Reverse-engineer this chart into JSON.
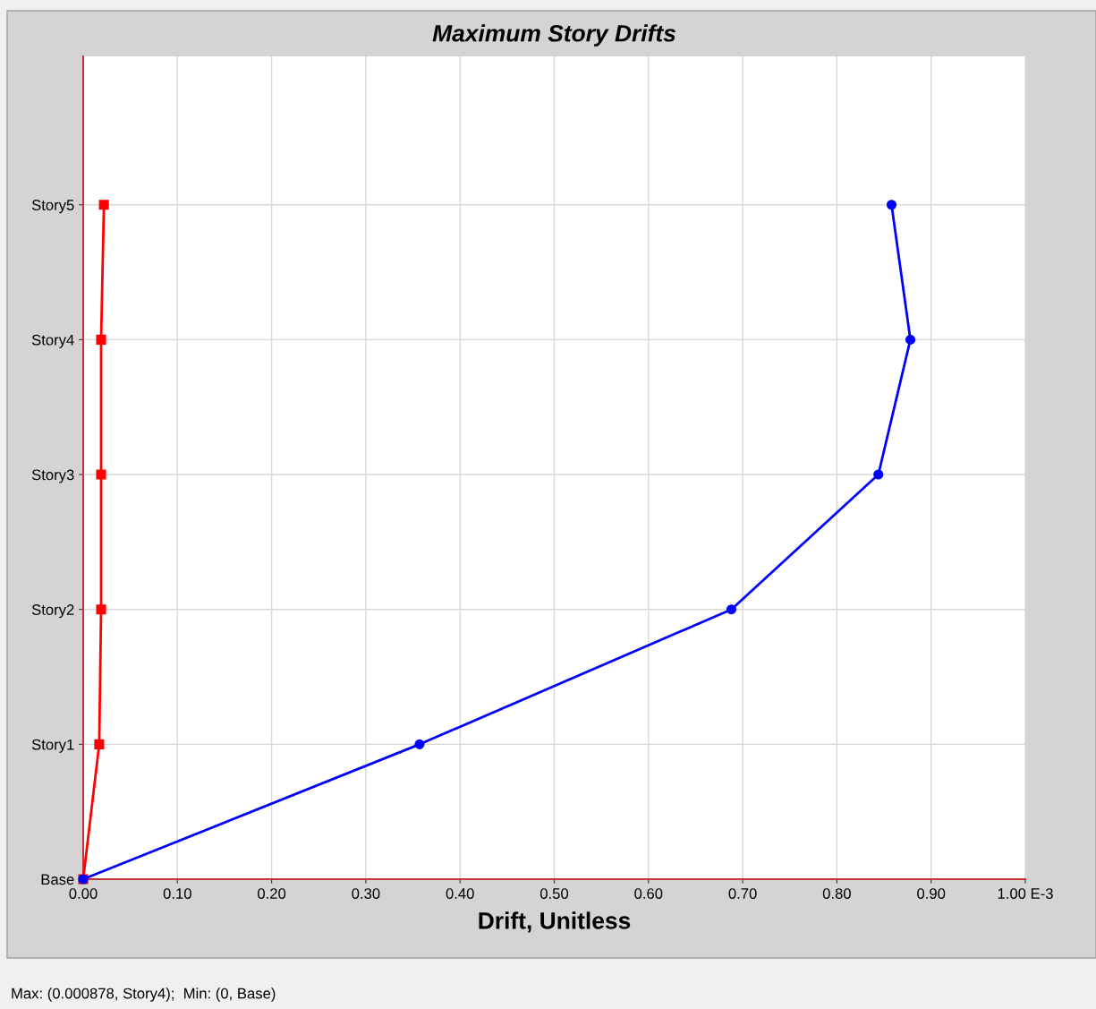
{
  "chart_data": {
    "type": "line",
    "orientation": "horizontal",
    "title": "Maximum Story Drifts",
    "xlabel": "Drift, Unitless",
    "annotations": [
      "Max: (0.000878, Story4);  Min: (0, Base)"
    ],
    "categories": [
      "Story5",
      "Story4",
      "Story3",
      "Story2",
      "Story1",
      "Base"
    ],
    "xlim": [
      0,
      1.0
    ],
    "xticks": [
      {
        "value": 0,
        "label": "0.00"
      },
      {
        "value": 0.1,
        "label": "0.10"
      },
      {
        "value": 0.2,
        "label": "0.20"
      },
      {
        "value": 0.3,
        "label": "0.30"
      },
      {
        "value": 0.4,
        "label": "0.40"
      },
      {
        "value": 0.5,
        "label": "0.50"
      },
      {
        "value": 0.6,
        "label": "0.60"
      },
      {
        "value": 0.7,
        "label": "0.70"
      },
      {
        "value": 0.8,
        "label": "0.80"
      },
      {
        "value": 0.9,
        "label": "0.90"
      },
      {
        "value": 1.0,
        "label": "1.00 E-3"
      }
    ],
    "grid": true,
    "series": [
      {
        "color": "#ff0000",
        "marker": "square",
        "values": [
          0.022,
          0.019,
          0.019,
          0.019,
          0.017,
          0
        ]
      },
      {
        "color": "#0000ff",
        "marker": "circle",
        "values": [
          0.858,
          0.878,
          0.844,
          0.688,
          0.357,
          0
        ]
      }
    ]
  }
}
